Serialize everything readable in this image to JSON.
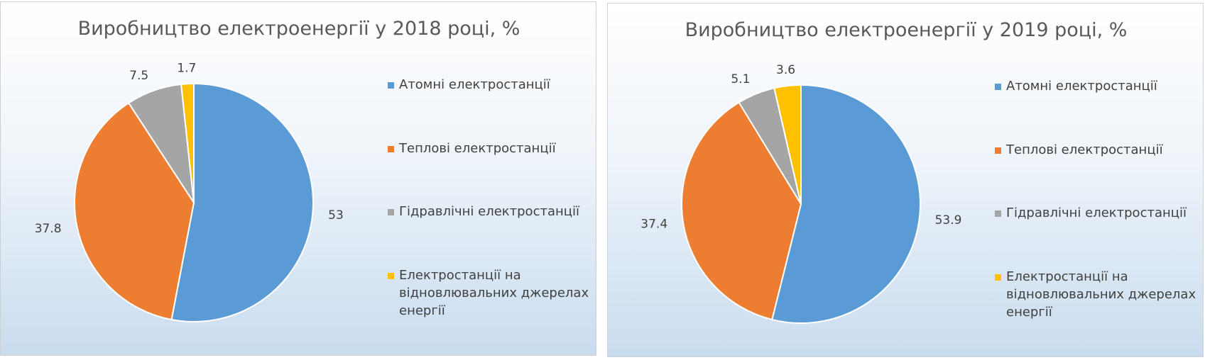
{
  "chart_data": [
    {
      "type": "pie",
      "title": "Виробництво електроенергії у 2018 році, %",
      "categories": [
        "Атомні електростанції",
        "Теплові електростанції",
        "Гідравлічні електростанції",
        "Електростанції на відновлювальних джерелах енергії"
      ],
      "values": [
        53,
        37.8,
        7.5,
        1.7
      ],
      "colors": [
        "#5b9bd5",
        "#ed7d31",
        "#a5a5a5",
        "#ffc000"
      ]
    },
    {
      "type": "pie",
      "title": "Виробництво електроенергії у 2019 році, %",
      "categories": [
        "Атомні електростанції",
        "Теплові електростанції",
        "Гідравлічні електростанції",
        "Електростанції на відновлювальних джерелах енергії"
      ],
      "values": [
        53.9,
        37.4,
        5.1,
        3.6
      ],
      "colors": [
        "#5b9bd5",
        "#ed7d31",
        "#a5a5a5",
        "#ffc000"
      ]
    }
  ]
}
